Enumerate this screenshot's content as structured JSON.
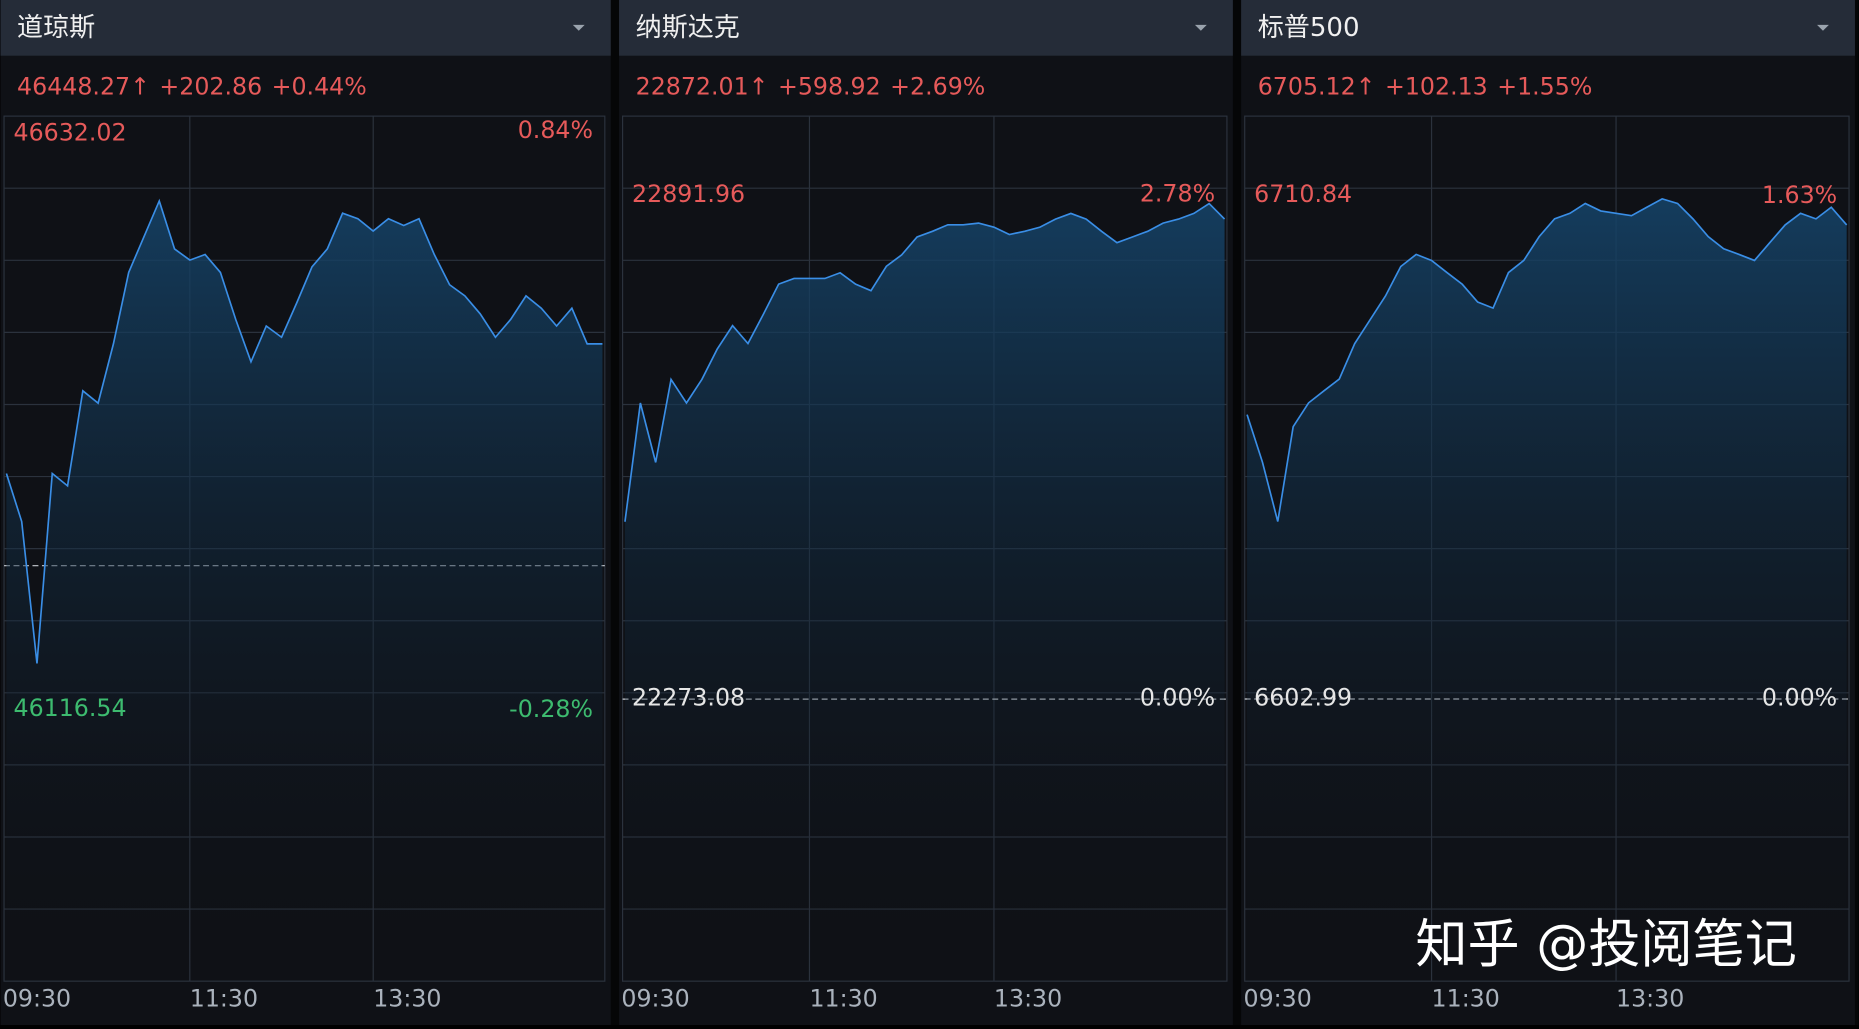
{
  "chart_data": [
    {
      "type": "line",
      "title": "道琼斯",
      "quote": {
        "price": "46448.27↑",
        "change": "+202.86",
        "change_pct": "+0.44%"
      },
      "categories": [
        "09:30",
        null,
        null,
        null,
        null,
        null,
        null,
        null,
        null,
        null,
        null,
        null,
        "11:30",
        null,
        null,
        null,
        null,
        null,
        null,
        null,
        null,
        null,
        null,
        null,
        "13:30",
        null,
        null,
        null,
        null,
        null,
        null,
        null,
        null,
        null,
        null,
        null,
        null,
        null,
        null,
        null
      ],
      "values": [
        46328,
        46285,
        46158,
        46328,
        46317,
        46402,
        46391,
        46444,
        46508,
        46540,
        46572,
        46529,
        46519,
        46524,
        46508,
        46466,
        46428,
        46460,
        46450,
        46481,
        46513,
        46529,
        46561,
        46556,
        46545,
        46556,
        46550,
        46556,
        46524,
        46497,
        46487,
        46471,
        46450,
        46466,
        46487,
        46476,
        46460,
        46476,
        46444,
        46444
      ],
      "color": "#3a8ee6",
      "ylim": [
        45873.6,
        46647.9
      ],
      "yticks": [
        46632.02,
        46116.54
      ],
      "y2lim": [
        -0.804,
        0.87
      ],
      "y2ticks": [
        {
          "value": 0.84,
          "label": "0.84%"
        },
        {
          "value": -0.28,
          "label": "-0.28%"
        }
      ]
    },
    {
      "type": "line",
      "title": "纳斯达克",
      "quote": {
        "price": "22872.01↑",
        "change": "+598.92",
        "change_pct": "+2.69%"
      },
      "categories": [
        "09:30",
        null,
        null,
        null,
        null,
        null,
        null,
        null,
        null,
        null,
        null,
        null,
        "11:30",
        null,
        null,
        null,
        null,
        null,
        null,
        null,
        null,
        null,
        null,
        null,
        "13:30",
        null,
        null,
        null,
        null,
        null,
        null,
        null,
        null,
        null,
        null,
        null,
        null,
        null,
        null,
        null
      ],
      "values": [
        22491,
        22637,
        22564,
        22666,
        22637,
        22666,
        22703,
        22732,
        22710,
        22746,
        22783,
        22790,
        22790,
        22790,
        22797,
        22783,
        22775,
        22805,
        22819,
        22841,
        22848,
        22856,
        22856,
        22858,
        22853,
        22844,
        22848,
        22853,
        22863,
        22870,
        22863,
        22848,
        22834,
        22841,
        22848,
        22858,
        22863,
        22870,
        22882,
        22863
      ],
      "color": "#3a8ee6",
      "ylim": [
        21926.5,
        22989.5
      ],
      "yticks": [
        22891.96,
        22273.08
      ],
      "y2lim": [
        -1.556,
        3.216
      ],
      "y2ticks": [
        {
          "value": 2.78,
          "label": "2.78%"
        },
        {
          "value": 0,
          "label": "0.00%"
        }
      ]
    },
    {
      "type": "line",
      "title": "标普500",
      "quote": {
        "price": "6705.12↑",
        "change": "+102.13",
        "change_pct": "+1.55%"
      },
      "categories": [
        "09:30",
        null,
        null,
        null,
        null,
        null,
        null,
        null,
        null,
        null,
        null,
        null,
        "11:30",
        null,
        null,
        null,
        null,
        null,
        null,
        null,
        null,
        null,
        null,
        null,
        "13:30",
        null,
        null,
        null,
        null,
        null,
        null,
        null,
        null,
        null,
        null,
        null,
        null,
        null,
        null,
        null
      ],
      "values": [
        6663.9,
        6653.7,
        6641.0,
        6661.3,
        6666.4,
        6669.0,
        6671.5,
        6679.1,
        6684.2,
        6689.3,
        6695.6,
        6698.2,
        6696.9,
        6694.3,
        6691.8,
        6688.0,
        6686.7,
        6694.3,
        6696.9,
        6702.0,
        6705.8,
        6707.0,
        6709.1,
        6707.5,
        6707.0,
        6706.5,
        6708.3,
        6710.1,
        6709.1,
        6705.8,
        6702.0,
        6699.4,
        6698.2,
        6696.9,
        6700.7,
        6704.5,
        6707.0,
        6705.8,
        6708.3,
        6704.5
      ],
      "color": "#3a8ee6",
      "ylim": [
        6542.6,
        6727.8
      ],
      "yticks": [
        6710.84,
        6602.99
      ],
      "y2lim": [
        -0.915,
        1.89
      ],
      "y2ticks": [
        {
          "value": 1.63,
          "label": "1.63%"
        },
        {
          "value": 0,
          "label": "0.00%"
        }
      ]
    }
  ],
  "watermark": "知乎 @投阅笔记"
}
